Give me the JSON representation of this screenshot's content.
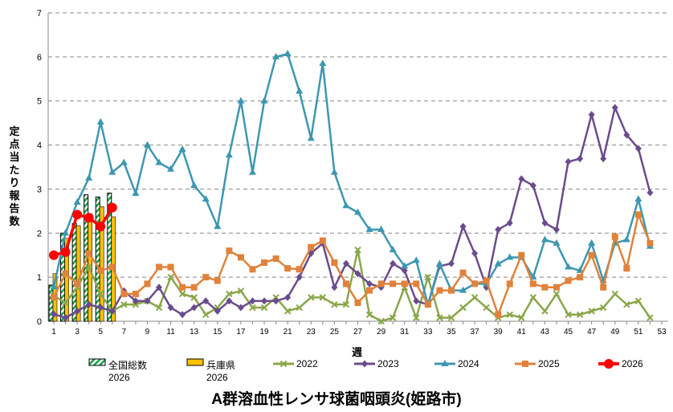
{
  "chart_data": {
    "type": "line",
    "title": "A群溶血性レンサ球菌咽頭炎(姫路市)",
    "xlabel": "週",
    "ylabel": "定点当たり報告数",
    "ylim": [
      0,
      7
    ],
    "yticks": [
      0,
      1,
      2,
      3,
      4,
      5,
      6,
      7
    ],
    "xticks": [
      1,
      3,
      5,
      7,
      9,
      11,
      13,
      15,
      17,
      19,
      21,
      23,
      25,
      27,
      29,
      31,
      33,
      35,
      37,
      39,
      41,
      43,
      45,
      47,
      49,
      51,
      53
    ],
    "grid": "horizontal dashed",
    "legend_placement": "bottom",
    "bar_series": [
      {
        "name": "全国総数",
        "name2": "2026",
        "color": "#1aa34a",
        "pattern": "hatched",
        "weeks": [
          1,
          2,
          3,
          4,
          5,
          6
        ],
        "values": [
          0.82,
          2.0,
          2.22,
          2.87,
          2.82,
          2.91
        ]
      },
      {
        "name": "兵庫県",
        "name2": "2026",
        "color": "#ffc000",
        "weeks": [
          1,
          2,
          3,
          4,
          5,
          6
        ],
        "values": [
          1.08,
          1.88,
          2.17,
          2.44,
          2.6,
          2.37
        ]
      }
    ],
    "series": [
      {
        "name": "2022",
        "color": "#8aa64a",
        "marker": "x",
        "values": [
          0.58,
          0.42,
          0.77,
          1.23,
          0.62,
          0.23,
          0.38,
          0.38,
          0.46,
          0.31,
          1.0,
          0.62,
          0.54,
          0.15,
          0.31,
          0.62,
          0.69,
          0.31,
          0.31,
          0.54,
          0.23,
          0.31,
          0.54,
          0.54,
          0.38,
          0.38,
          1.62,
          0.15,
          0.0,
          0.08,
          0.77,
          0.08,
          1.0,
          0.08,
          0.08,
          0.31,
          0.54,
          0.31,
          0.08,
          0.15,
          0.08,
          0.54,
          0.23,
          0.62,
          0.15,
          0.15,
          0.23,
          0.31,
          0.62,
          0.38,
          0.46,
          0.08
        ]
      },
      {
        "name": "2023",
        "color": "#6a4c8c",
        "marker": "diamond",
        "values": [
          0.16,
          0.08,
          0.23,
          0.38,
          0.31,
          0.23,
          0.69,
          0.46,
          0.46,
          0.77,
          0.31,
          0.15,
          0.31,
          0.46,
          0.23,
          0.46,
          0.31,
          0.46,
          0.46,
          0.46,
          0.54,
          1.0,
          1.54,
          1.77,
          0.77,
          1.31,
          1.08,
          0.85,
          0.77,
          1.31,
          1.15,
          0.46,
          0.38,
          1.25,
          1.31,
          2.15,
          1.54,
          0.77,
          2.08,
          2.23,
          3.23,
          3.08,
          2.23,
          2.08,
          3.62,
          3.69,
          4.69,
          3.69,
          4.85,
          4.23,
          3.92,
          2.92
        ]
      },
      {
        "name": "2024",
        "color": "#3d97b0",
        "marker": "triangle",
        "values": [
          0.78,
          2.0,
          2.7,
          3.25,
          4.52,
          3.38,
          3.6,
          2.9,
          4.0,
          3.6,
          3.45,
          3.9,
          3.08,
          2.77,
          2.15,
          3.77,
          5.0,
          3.38,
          5.0,
          6.0,
          6.07,
          5.22,
          4.15,
          5.85,
          3.38,
          2.62,
          2.47,
          2.08,
          2.08,
          1.62,
          1.25,
          1.38,
          0.38,
          1.3,
          0.7,
          0.7,
          0.85,
          0.85,
          1.3,
          1.45,
          1.45,
          1.0,
          1.85,
          1.77,
          1.23,
          1.15,
          1.77,
          0.92,
          1.77,
          1.85,
          2.77,
          1.7
        ]
      },
      {
        "name": "2025",
        "color": "#e0823c",
        "marker": "square",
        "values": [
          0.54,
          1.08,
          0.85,
          1.54,
          1.15,
          1.23,
          0.62,
          0.62,
          0.85,
          1.23,
          1.23,
          0.77,
          0.77,
          1.0,
          0.92,
          1.6,
          1.45,
          1.18,
          1.33,
          1.42,
          1.2,
          1.18,
          1.68,
          1.83,
          1.33,
          0.85,
          0.42,
          0.7,
          0.85,
          0.85,
          0.85,
          0.85,
          0.38,
          0.7,
          0.7,
          1.1,
          0.85,
          0.92,
          0.15,
          0.85,
          1.5,
          0.85,
          0.77,
          0.77,
          0.92,
          1.0,
          1.5,
          0.77,
          1.92,
          1.2,
          2.42,
          1.77
        ]
      },
      {
        "name": "2026",
        "color": "#ff0000",
        "marker": "circle",
        "values": [
          1.5,
          1.57,
          2.42,
          2.35,
          2.15,
          2.58
        ]
      }
    ]
  }
}
